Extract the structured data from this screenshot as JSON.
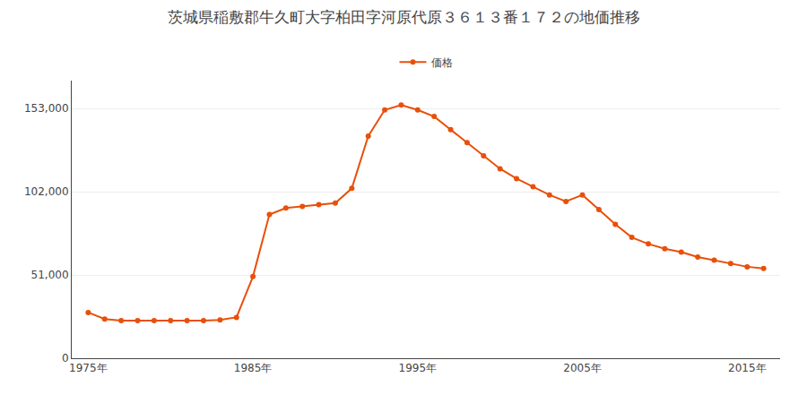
{
  "chart_data": {
    "type": "line",
    "title": "茨城県稲敷郡牛久町大字柏田字河原代原３６１３番１７２の地価推移",
    "x": [
      1975,
      1976,
      1977,
      1978,
      1979,
      1980,
      1981,
      1982,
      1983,
      1984,
      1985,
      1986,
      1987,
      1988,
      1989,
      1990,
      1991,
      1992,
      1993,
      1994,
      1995,
      1996,
      1997,
      1998,
      1999,
      2000,
      2001,
      2002,
      2003,
      2004,
      2005,
      2006,
      2007,
      2008,
      2009,
      2010,
      2011,
      2012,
      2013,
      2014,
      2015,
      2016
    ],
    "series": [
      {
        "name": "価格",
        "color": "#E8500A",
        "marker": "circle",
        "values": [
          28000,
          24000,
          23000,
          23000,
          23000,
          23000,
          23000,
          23000,
          23500,
          25000,
          50000,
          88000,
          92000,
          93000,
          94000,
          95000,
          104000,
          136000,
          152000,
          155000,
          152000,
          148000,
          140000,
          132000,
          124000,
          116000,
          110000,
          105000,
          100000,
          96000,
          100000,
          91000,
          82000,
          74000,
          70000,
          67000,
          65000,
          62000,
          60000,
          58000,
          56000,
          55000
        ]
      }
    ],
    "xlim": [
      1974,
      2017
    ],
    "xticks": [
      {
        "value": 1975,
        "label": "1975年"
      },
      {
        "value": 1985,
        "label": "1985年"
      },
      {
        "value": 1995,
        "label": "1995年"
      },
      {
        "value": 2005,
        "label": "2005年"
      },
      {
        "value": 2015,
        "label": "2015年"
      }
    ],
    "ylim": [
      0,
      170000
    ],
    "yticks": [
      0,
      {
        "value": 51000,
        "label": "51,000"
      },
      {
        "value": 102000,
        "label": "102,000"
      },
      {
        "value": 153000,
        "label": "153,000"
      }
    ],
    "grid": true,
    "legend": "top"
  }
}
